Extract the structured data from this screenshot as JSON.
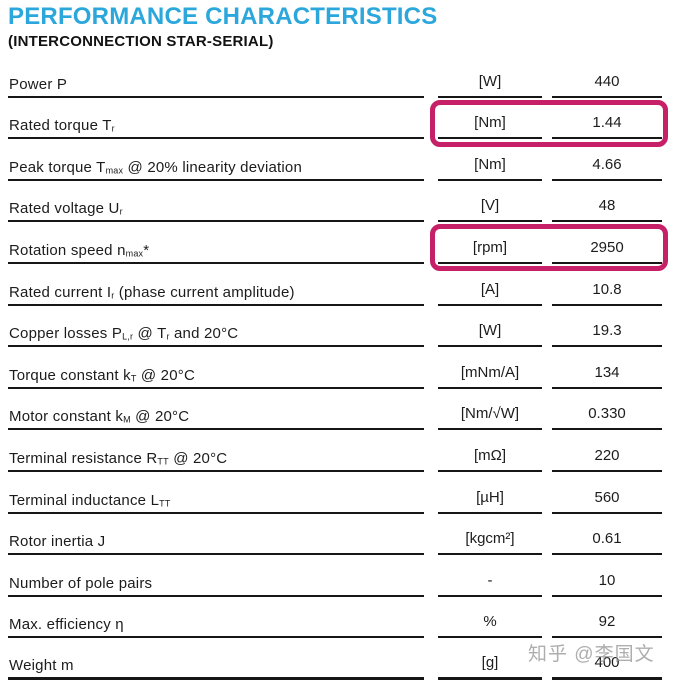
{
  "header": {
    "title": "PERFORMANCE CHARACTERISTICS",
    "subtitle": "(INTERCONNECTION STAR-SERIAL)"
  },
  "colors": {
    "title_blue": "#2BA7DC",
    "highlight_magenta": "#C62168",
    "line_black": "#161616"
  },
  "watermark": {
    "text": "知乎 @李国文"
  },
  "table": {
    "columns": [
      "parameter",
      "unit",
      "value"
    ],
    "rows": [
      {
        "label_segments": [
          {
            "t": "Power P"
          }
        ],
        "unit": "[W]",
        "value": "440",
        "highlighted": false
      },
      {
        "label_segments": [
          {
            "t": "Rated torque T"
          },
          {
            "t": "r",
            "sub": true
          }
        ],
        "unit": "[Nm]",
        "value": "1.44",
        "highlighted": true
      },
      {
        "label_segments": [
          {
            "t": "Peak torque T"
          },
          {
            "t": "max",
            "sub": true
          },
          {
            "t": " @ 20% linearity deviation"
          }
        ],
        "unit": "[Nm]",
        "value": "4.66",
        "highlighted": false
      },
      {
        "label_segments": [
          {
            "t": "Rated voltage U"
          },
          {
            "t": "r",
            "sub": true
          }
        ],
        "unit": "[V]",
        "value": "48",
        "highlighted": false
      },
      {
        "label_segments": [
          {
            "t": "Rotation speed n"
          },
          {
            "t": "max",
            "sub": true
          },
          {
            "t": "*"
          }
        ],
        "unit": "[rpm]",
        "value": "2950",
        "highlighted": true
      },
      {
        "label_segments": [
          {
            "t": "Rated current I"
          },
          {
            "t": "r",
            "sub": true
          },
          {
            "t": " (phase current amplitude)"
          }
        ],
        "unit": "[A]",
        "value": "10.8",
        "highlighted": false
      },
      {
        "label_segments": [
          {
            "t": "Copper losses P"
          },
          {
            "t": "L,r",
            "sub": true
          },
          {
            "t": " @ T"
          },
          {
            "t": "r",
            "sub": true
          },
          {
            "t": " and 20°C"
          }
        ],
        "unit": "[W]",
        "value": "19.3",
        "highlighted": false
      },
      {
        "label_segments": [
          {
            "t": "Torque constant k"
          },
          {
            "t": "T",
            "sub": true
          },
          {
            "t": " @ 20°C"
          }
        ],
        "unit": "[mNm/A]",
        "value": "134",
        "highlighted": false
      },
      {
        "label_segments": [
          {
            "t": "Motor constant k"
          },
          {
            "t": "M",
            "sub": true
          },
          {
            "t": " @ 20°C"
          }
        ],
        "unit": "[Nm/√W]",
        "value": "0.330",
        "highlighted": false
      },
      {
        "label_segments": [
          {
            "t": "Terminal resistance R"
          },
          {
            "t": "TT",
            "sub": true
          },
          {
            "t": " @ 20°C"
          }
        ],
        "unit": "[mΩ]",
        "value": "220",
        "highlighted": false
      },
      {
        "label_segments": [
          {
            "t": "Terminal inductance L"
          },
          {
            "t": "TT",
            "sub": true
          }
        ],
        "unit": "[µH]",
        "value": "560",
        "highlighted": false
      },
      {
        "label_segments": [
          {
            "t": "Rotor inertia J"
          }
        ],
        "unit": "[kgcm²]",
        "value": "0.61",
        "highlighted": false
      },
      {
        "label_segments": [
          {
            "t": "Number of pole pairs"
          }
        ],
        "unit": "-",
        "value": "10",
        "highlighted": false
      },
      {
        "label_segments": [
          {
            "t": "Max. efficiency η"
          }
        ],
        "unit": "%",
        "value": "92",
        "highlighted": false
      },
      {
        "label_segments": [
          {
            "t": "Weight m"
          }
        ],
        "unit": "[g]",
        "value": "400",
        "highlighted": false
      }
    ]
  }
}
